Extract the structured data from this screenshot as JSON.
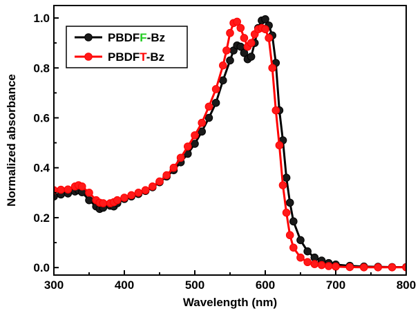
{
  "chart_data": {
    "type": "line",
    "xlabel": "Wavelength (nm)",
    "ylabel": "Normalized absorbance",
    "xlim": [
      300,
      800
    ],
    "ylim": [
      -0.03,
      1.05
    ],
    "xticks": [
      300,
      400,
      500,
      600,
      700,
      800
    ],
    "yticks": [
      0.0,
      0.2,
      0.4,
      0.6,
      0.8,
      1.0
    ],
    "ytick_labels": [
      "0.0",
      "0.2",
      "0.4",
      "0.6",
      "0.8",
      "1.0"
    ],
    "legend_position": "top-left",
    "series": [
      {
        "name": "PBDFF-Bz",
        "name_parts": [
          {
            "text": "PBDF",
            "color": "#000000"
          },
          {
            "text": "F",
            "color": "#22cc22"
          },
          {
            "text": "-Bz",
            "color": "#000000"
          }
        ],
        "color": "#000000",
        "marker_fill": "#1a1a1a",
        "x": [
          300,
          310,
          320,
          330,
          335,
          340,
          350,
          360,
          365,
          370,
          380,
          385,
          390,
          400,
          410,
          420,
          430,
          440,
          450,
          460,
          470,
          480,
          490,
          500,
          510,
          520,
          530,
          540,
          550,
          555,
          560,
          565,
          570,
          575,
          580,
          585,
          590,
          595,
          600,
          605,
          610,
          615,
          620,
          625,
          630,
          635,
          640,
          650,
          660,
          670,
          680,
          690,
          700,
          720,
          740,
          760,
          780,
          800
        ],
        "y": [
          0.285,
          0.293,
          0.297,
          0.305,
          0.31,
          0.302,
          0.27,
          0.245,
          0.235,
          0.24,
          0.248,
          0.245,
          0.258,
          0.275,
          0.285,
          0.295,
          0.307,
          0.322,
          0.342,
          0.365,
          0.39,
          0.422,
          0.456,
          0.496,
          0.545,
          0.6,
          0.66,
          0.75,
          0.83,
          0.87,
          0.89,
          0.885,
          0.86,
          0.835,
          0.845,
          0.9,
          0.96,
          0.99,
          0.995,
          0.97,
          0.93,
          0.82,
          0.63,
          0.51,
          0.36,
          0.26,
          0.185,
          0.11,
          0.065,
          0.04,
          0.028,
          0.018,
          0.012,
          0.007,
          0.004,
          0.003,
          0.002,
          0.002
        ]
      },
      {
        "name": "PBDFT-Bz",
        "name_parts": [
          {
            "text": "PBDF",
            "color": "#000000"
          },
          {
            "text": "T",
            "color": "#ff0000"
          },
          {
            "text": "-Bz",
            "color": "#000000"
          }
        ],
        "color": "#ff0000",
        "marker_fill": "#ff1a1a",
        "x": [
          300,
          310,
          320,
          330,
          335,
          340,
          350,
          360,
          365,
          370,
          380,
          385,
          390,
          400,
          410,
          420,
          430,
          440,
          450,
          460,
          470,
          480,
          490,
          500,
          510,
          520,
          530,
          540,
          545,
          550,
          555,
          560,
          565,
          570,
          575,
          580,
          585,
          590,
          595,
          600,
          605,
          610,
          615,
          620,
          625,
          630,
          635,
          640,
          650,
          660,
          670,
          680,
          690,
          700,
          720,
          740,
          760,
          780,
          800
        ],
        "y": [
          0.31,
          0.312,
          0.313,
          0.325,
          0.33,
          0.325,
          0.3,
          0.27,
          0.26,
          0.258,
          0.258,
          0.262,
          0.27,
          0.28,
          0.29,
          0.3,
          0.31,
          0.325,
          0.345,
          0.37,
          0.4,
          0.44,
          0.485,
          0.53,
          0.58,
          0.645,
          0.715,
          0.81,
          0.87,
          0.94,
          0.98,
          0.985,
          0.96,
          0.92,
          0.885,
          0.9,
          0.935,
          0.955,
          0.96,
          0.955,
          0.92,
          0.8,
          0.63,
          0.49,
          0.33,
          0.22,
          0.13,
          0.08,
          0.04,
          0.022,
          0.014,
          0.01,
          0.006,
          0.004,
          0.002,
          0.001,
          0.001,
          0.001,
          0.001
        ]
      }
    ]
  }
}
